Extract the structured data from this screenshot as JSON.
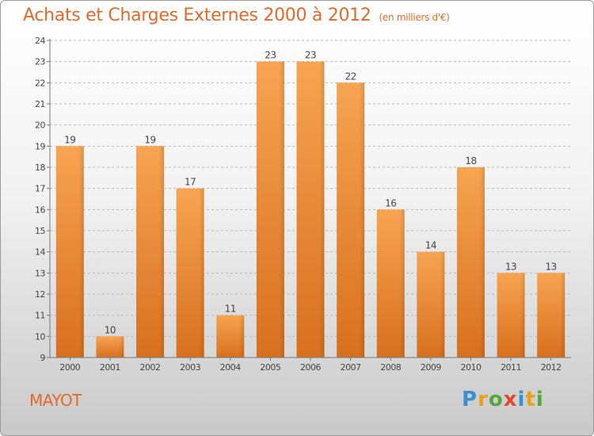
{
  "title": "Achats et Charges Externes 2000 à 2012",
  "subtitle": "(en milliers d'€)",
  "place": "MAYOT",
  "brand": [
    "P",
    "r",
    "o",
    "x",
    "i",
    "t",
    "i"
  ],
  "colors": {
    "bar": "#f0923a",
    "bar_dark": "#d86e1c",
    "title": "#e06a2a",
    "grid": "#b8b8b8"
  },
  "chart_data": {
    "type": "bar",
    "categories": [
      "2000",
      "2001",
      "2002",
      "2003",
      "2004",
      "2005",
      "2006",
      "2007",
      "2008",
      "2009",
      "2010",
      "2011",
      "2012"
    ],
    "values": [
      19,
      10,
      19,
      17,
      11,
      23,
      23,
      22,
      16,
      14,
      18,
      13,
      13
    ],
    "title": "Achats et Charges Externes 2000 à 2012",
    "subtitle": "(en milliers d'€)",
    "ylim": [
      9,
      24
    ],
    "yticks": [
      9,
      10,
      11,
      12,
      13,
      14,
      15,
      16,
      17,
      18,
      19,
      20,
      21,
      22,
      23,
      24
    ],
    "grid": true,
    "data_labels": true
  }
}
